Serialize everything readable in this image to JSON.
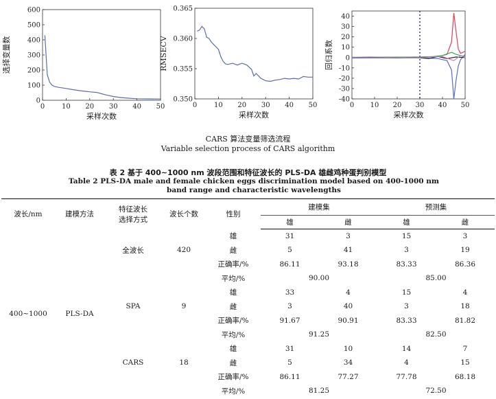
{
  "charts": [
    {
      "ylabel": "选择变量数",
      "xlabel": "采样次数",
      "xticks": [
        "0",
        "10",
        "20",
        "30",
        "40",
        "50"
      ],
      "yticks": [
        "0",
        "100",
        "200",
        "300",
        "400",
        "500",
        "600"
      ],
      "xlim": [
        0,
        50
      ],
      "ylim": [
        0,
        600
      ],
      "series": [
        [
          1,
          430
        ],
        [
          2,
          170
        ],
        [
          3,
          120
        ],
        [
          4,
          100
        ],
        [
          5,
          92
        ],
        [
          7,
          85
        ],
        [
          10,
          78
        ],
        [
          13,
          70
        ],
        [
          16,
          63
        ],
        [
          20,
          56
        ],
        [
          23,
          52
        ],
        [
          25,
          43
        ],
        [
          27,
          35
        ],
        [
          30,
          25
        ],
        [
          33,
          18
        ],
        [
          36,
          14
        ],
        [
          40,
          10
        ],
        [
          45,
          9
        ],
        [
          50,
          8
        ]
      ]
    },
    {
      "ylabel": "RMSECV",
      "xlabel": "采样次数",
      "xticks": [
        "0",
        "10",
        "20",
        "30",
        "40",
        "50"
      ],
      "yticks": [
        "0.350",
        "0.355",
        "0.360",
        "0.365"
      ],
      "xlim": [
        0,
        50
      ],
      "ylim": [
        0.35,
        0.365
      ],
      "series": [
        [
          1,
          0.3612
        ],
        [
          2,
          0.3614
        ],
        [
          3,
          0.362
        ],
        [
          4,
          0.3616
        ],
        [
          5,
          0.3602
        ],
        [
          6,
          0.36
        ],
        [
          7,
          0.3594
        ],
        [
          8,
          0.359
        ],
        [
          9,
          0.3586
        ],
        [
          10,
          0.3582
        ],
        [
          11,
          0.357
        ],
        [
          12,
          0.3562
        ],
        [
          13,
          0.3558
        ],
        [
          14,
          0.3557
        ],
        [
          16,
          0.3559
        ],
        [
          18,
          0.3556
        ],
        [
          20,
          0.3559
        ],
        [
          22,
          0.3556
        ],
        [
          24,
          0.3549
        ],
        [
          25,
          0.3538
        ],
        [
          26,
          0.3542
        ],
        [
          28,
          0.3534
        ],
        [
          30,
          0.353
        ],
        [
          32,
          0.3529
        ],
        [
          34,
          0.3531
        ],
        [
          36,
          0.3532
        ],
        [
          38,
          0.3534
        ],
        [
          40,
          0.3533
        ],
        [
          42,
          0.3534
        ],
        [
          44,
          0.3533
        ],
        [
          46,
          0.3537
        ],
        [
          48,
          0.3536
        ],
        [
          50,
          0.3536
        ]
      ]
    },
    {
      "ylabel": "回归系数",
      "xlabel": "采样次数",
      "xticks": [
        "0",
        "10",
        "20",
        "30",
        "40",
        "50"
      ],
      "yticks": [
        "-40",
        "-30",
        "-20",
        "-10",
        "0",
        "10",
        "20",
        "30",
        "40"
      ],
      "xlim": [
        0,
        50
      ],
      "ylim": [
        -40,
        45
      ],
      "vline": 30,
      "series": [
        {
          "color": "#e0405a",
          "points": [
            [
              0,
              0
            ],
            [
              30,
              0.5
            ],
            [
              38,
              1
            ],
            [
              42,
              3
            ],
            [
              44,
              15
            ],
            [
              45,
              43
            ],
            [
              46,
              25
            ],
            [
              47,
              8
            ],
            [
              48,
              4
            ],
            [
              50,
              6
            ]
          ]
        },
        {
          "color": "#5a6ad0",
          "points": [
            [
              0,
              -0.5
            ],
            [
              30,
              -0.3
            ],
            [
              38,
              -1
            ],
            [
              42,
              -3
            ],
            [
              44,
              -12
            ],
            [
              45,
              -40
            ],
            [
              46,
              -22
            ],
            [
              47,
              -8
            ],
            [
              48,
              -2
            ],
            [
              50,
              3
            ]
          ]
        },
        {
          "color": "#3aa852",
          "points": [
            [
              0,
              0.3
            ],
            [
              30,
              0.5
            ],
            [
              36,
              1
            ],
            [
              40,
              2
            ],
            [
              44,
              5
            ],
            [
              46,
              3
            ],
            [
              48,
              2
            ],
            [
              50,
              1
            ]
          ]
        },
        {
          "color": "#222222",
          "points": [
            [
              0,
              0
            ],
            [
              8,
              0.3
            ],
            [
              14,
              0
            ],
            [
              20,
              -0.3
            ],
            [
              28,
              0.2
            ],
            [
              34,
              -1
            ],
            [
              38,
              1
            ],
            [
              42,
              -1
            ],
            [
              46,
              0.5
            ],
            [
              50,
              0
            ]
          ]
        },
        {
          "color": "#c080c0",
          "points": [
            [
              0,
              0
            ],
            [
              30,
              0
            ],
            [
              40,
              1
            ],
            [
              45,
              -3
            ],
            [
              48,
              2
            ],
            [
              50,
              0
            ]
          ]
        }
      ]
    }
  ],
  "figure": {
    "caption_cn": "CARS 算法变量筛选流程",
    "caption_en": "Variable selection process of CARS algorithm"
  },
  "table": {
    "title_cn": "表 2   基于 400~1000 nm 波段范围和特征波长的 PLS-DA 雄雌鸡种蛋判别模型",
    "title_en": "Table 2    PLS-DA male and female chicken eggs discrimination model based on 400-1000 nm band range and characteristic wavelengths",
    "headers": {
      "wavelength": "波长/nm",
      "method": "建模方法",
      "selection_line1": "特征波长",
      "selection_line2": "选择方式",
      "count": "波长个数",
      "sex": "性别",
      "train": "建模集",
      "pred": "预测集",
      "male": "雄",
      "female": "雌"
    },
    "wavelength": "400~1000",
    "method": "PLS-DA",
    "labels": {
      "male": "雄",
      "female": "雌",
      "accuracy": "正确率/%",
      "average": "平均/%"
    },
    "groups": [
      {
        "name": "全波长",
        "count": "420",
        "male_row": [
          "31",
          "3",
          "15",
          "3"
        ],
        "female_row": [
          "5",
          "41",
          "3",
          "19"
        ],
        "accuracy": [
          "86.11",
          "93.18",
          "83.33",
          "86.36"
        ],
        "avg_train": "90.00",
        "avg_pred": "85.00"
      },
      {
        "name": "SPA",
        "count": "9",
        "male_row": [
          "33",
          "4",
          "15",
          "4"
        ],
        "female_row": [
          "3",
          "40",
          "3",
          "18"
        ],
        "accuracy": [
          "91.67",
          "90.91",
          "83.33",
          "81.82"
        ],
        "avg_train": "91.25",
        "avg_pred": "82.50"
      },
      {
        "name": "CARS",
        "count": "18",
        "male_row": [
          "31",
          "10",
          "14",
          "7"
        ],
        "female_row": [
          "5",
          "34",
          "4",
          "15"
        ],
        "accuracy": [
          "86.11",
          "77.27",
          "77.78",
          "68.18"
        ],
        "avg_train": "81.25",
        "avg_pred": "72.50"
      }
    ]
  }
}
